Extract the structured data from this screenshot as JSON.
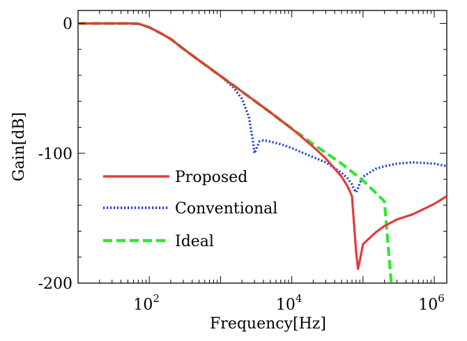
{
  "chart_data": {
    "type": "line",
    "xlabel": "Frequency[Hz]",
    "ylabel": "Gain[dB]",
    "x_scale": "log",
    "xlim": [
      10,
      1500000
    ],
    "ylim": [
      -200,
      10
    ],
    "x_ticks": [
      {
        "value": 100,
        "base": "10",
        "exp": "2"
      },
      {
        "value": 10000,
        "base": "10",
        "exp": "4"
      },
      {
        "value": 1000000,
        "base": "10",
        "exp": "6"
      }
    ],
    "y_ticks": [
      {
        "value": 0,
        "label": "0"
      },
      {
        "value": -100,
        "label": "-100"
      },
      {
        "value": -200,
        "label": "-200"
      }
    ],
    "legend_position": "center-left",
    "series": [
      {
        "name": "Proposed",
        "color": "#e8383a",
        "style": "solid",
        "x": [
          10,
          20,
          50,
          70,
          100,
          150,
          200,
          300,
          500,
          1000,
          2000,
          3000,
          5000,
          10000,
          20000,
          30000,
          50000,
          60000,
          70000,
          80000,
          85000,
          90000,
          100000,
          150000,
          200000,
          300000,
          500000,
          1000000,
          1500000
        ],
        "y": [
          0,
          0,
          0,
          -0.2,
          -3,
          -8,
          -12,
          -19.5,
          -28.5,
          -40.5,
          -52.5,
          -59.5,
          -68.5,
          -81,
          -95,
          -104,
          -118,
          -125,
          -133,
          -176,
          -189,
          -183,
          -170,
          -161,
          -156,
          -151,
          -147,
          -139,
          -133
        ]
      },
      {
        "name": "Conventional",
        "color": "#1f3fd6",
        "style": "dotted",
        "x": [
          10,
          20,
          50,
          70,
          100,
          150,
          200,
          300,
          500,
          700,
          1000,
          1500,
          2000,
          2200,
          2500,
          2800,
          3000,
          3500,
          4000,
          5000,
          7000,
          10000,
          20000,
          30000,
          50000,
          60000,
          70000,
          75000,
          80000,
          85000,
          90000,
          100000,
          150000,
          200000,
          300000,
          500000,
          1000000,
          1500000
        ],
        "y": [
          0,
          0,
          0,
          -0.2,
          -3,
          -8,
          -12,
          -19.5,
          -28.5,
          -34,
          -40.5,
          -49,
          -58,
          -64,
          -72,
          -88,
          -100,
          -91,
          -90,
          -91,
          -93,
          -96,
          -103,
          -107,
          -115,
          -119,
          -124,
          -128,
          -130,
          -127,
          -123,
          -118,
          -112,
          -110,
          -108,
          -107,
          -108,
          -110
        ]
      },
      {
        "name": "Ideal",
        "color": "#2ee82e",
        "style": "dashed",
        "x": [
          10,
          20,
          50,
          70,
          100,
          150,
          200,
          300,
          500,
          1000,
          2000,
          5000,
          10000,
          20000,
          50000,
          100000,
          200000,
          250000
        ],
        "y": [
          0,
          0,
          0,
          -0.2,
          -3,
          -8,
          -12,
          -19.5,
          -28.5,
          -40.5,
          -52.5,
          -68.5,
          -81,
          -93,
          -108,
          -121,
          -137,
          -201
        ]
      }
    ]
  }
}
